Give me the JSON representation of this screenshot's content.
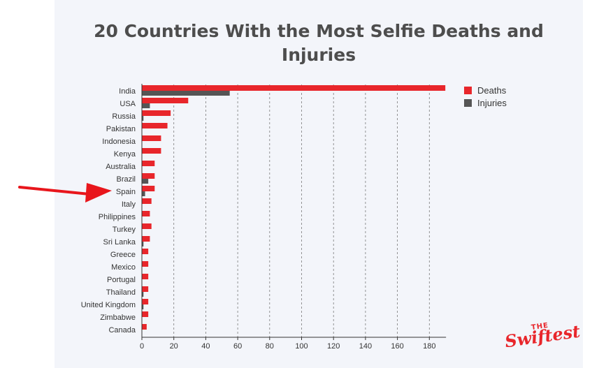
{
  "title": "20 Countries With the Most Selfie Deaths and Injuries",
  "colors": {
    "deaths": "#e8262b",
    "injuries": "#555555",
    "arrow": "#e8161c",
    "background": "#f3f5fa"
  },
  "legend": {
    "deaths": "Deaths",
    "injuries": "Injuries"
  },
  "annotation": {
    "label": "arrow pointing to Spain",
    "target": "Spain"
  },
  "logo": {
    "the": "THE",
    "name": "Swiftest"
  },
  "chart_data": {
    "type": "bar",
    "orientation": "horizontal",
    "title": "20 Countries With the Most Selfie Deaths and Injuries",
    "categories": [
      "India",
      "USA",
      "Russia",
      "Pakistan",
      "Indonesia",
      "Kenya",
      "Australia",
      "Brazil",
      "Spain",
      "Italy",
      "Philippines",
      "Turkey",
      "Sri Lanka",
      "Greece",
      "Mexico",
      "Portugal",
      "Thailand",
      "United Kingdom",
      "Zimbabwe",
      "Canada"
    ],
    "series": [
      {
        "name": "Deaths",
        "values": [
          190,
          29,
          18,
          16,
          12,
          12,
          8,
          8,
          8,
          6,
          5,
          6,
          5,
          4,
          4,
          4,
          4,
          4,
          4,
          3
        ]
      },
      {
        "name": "Injuries",
        "values": [
          55,
          5,
          1,
          0,
          0,
          0,
          0,
          4,
          2,
          0,
          0,
          0,
          1,
          0,
          0,
          0,
          1,
          1,
          0,
          0
        ]
      }
    ],
    "xlim": [
      0,
      190
    ],
    "xticks": [
      0,
      20,
      40,
      60,
      80,
      100,
      120,
      140,
      160,
      180
    ],
    "grid": "vertical dashed",
    "legend_position": "top-right"
  }
}
